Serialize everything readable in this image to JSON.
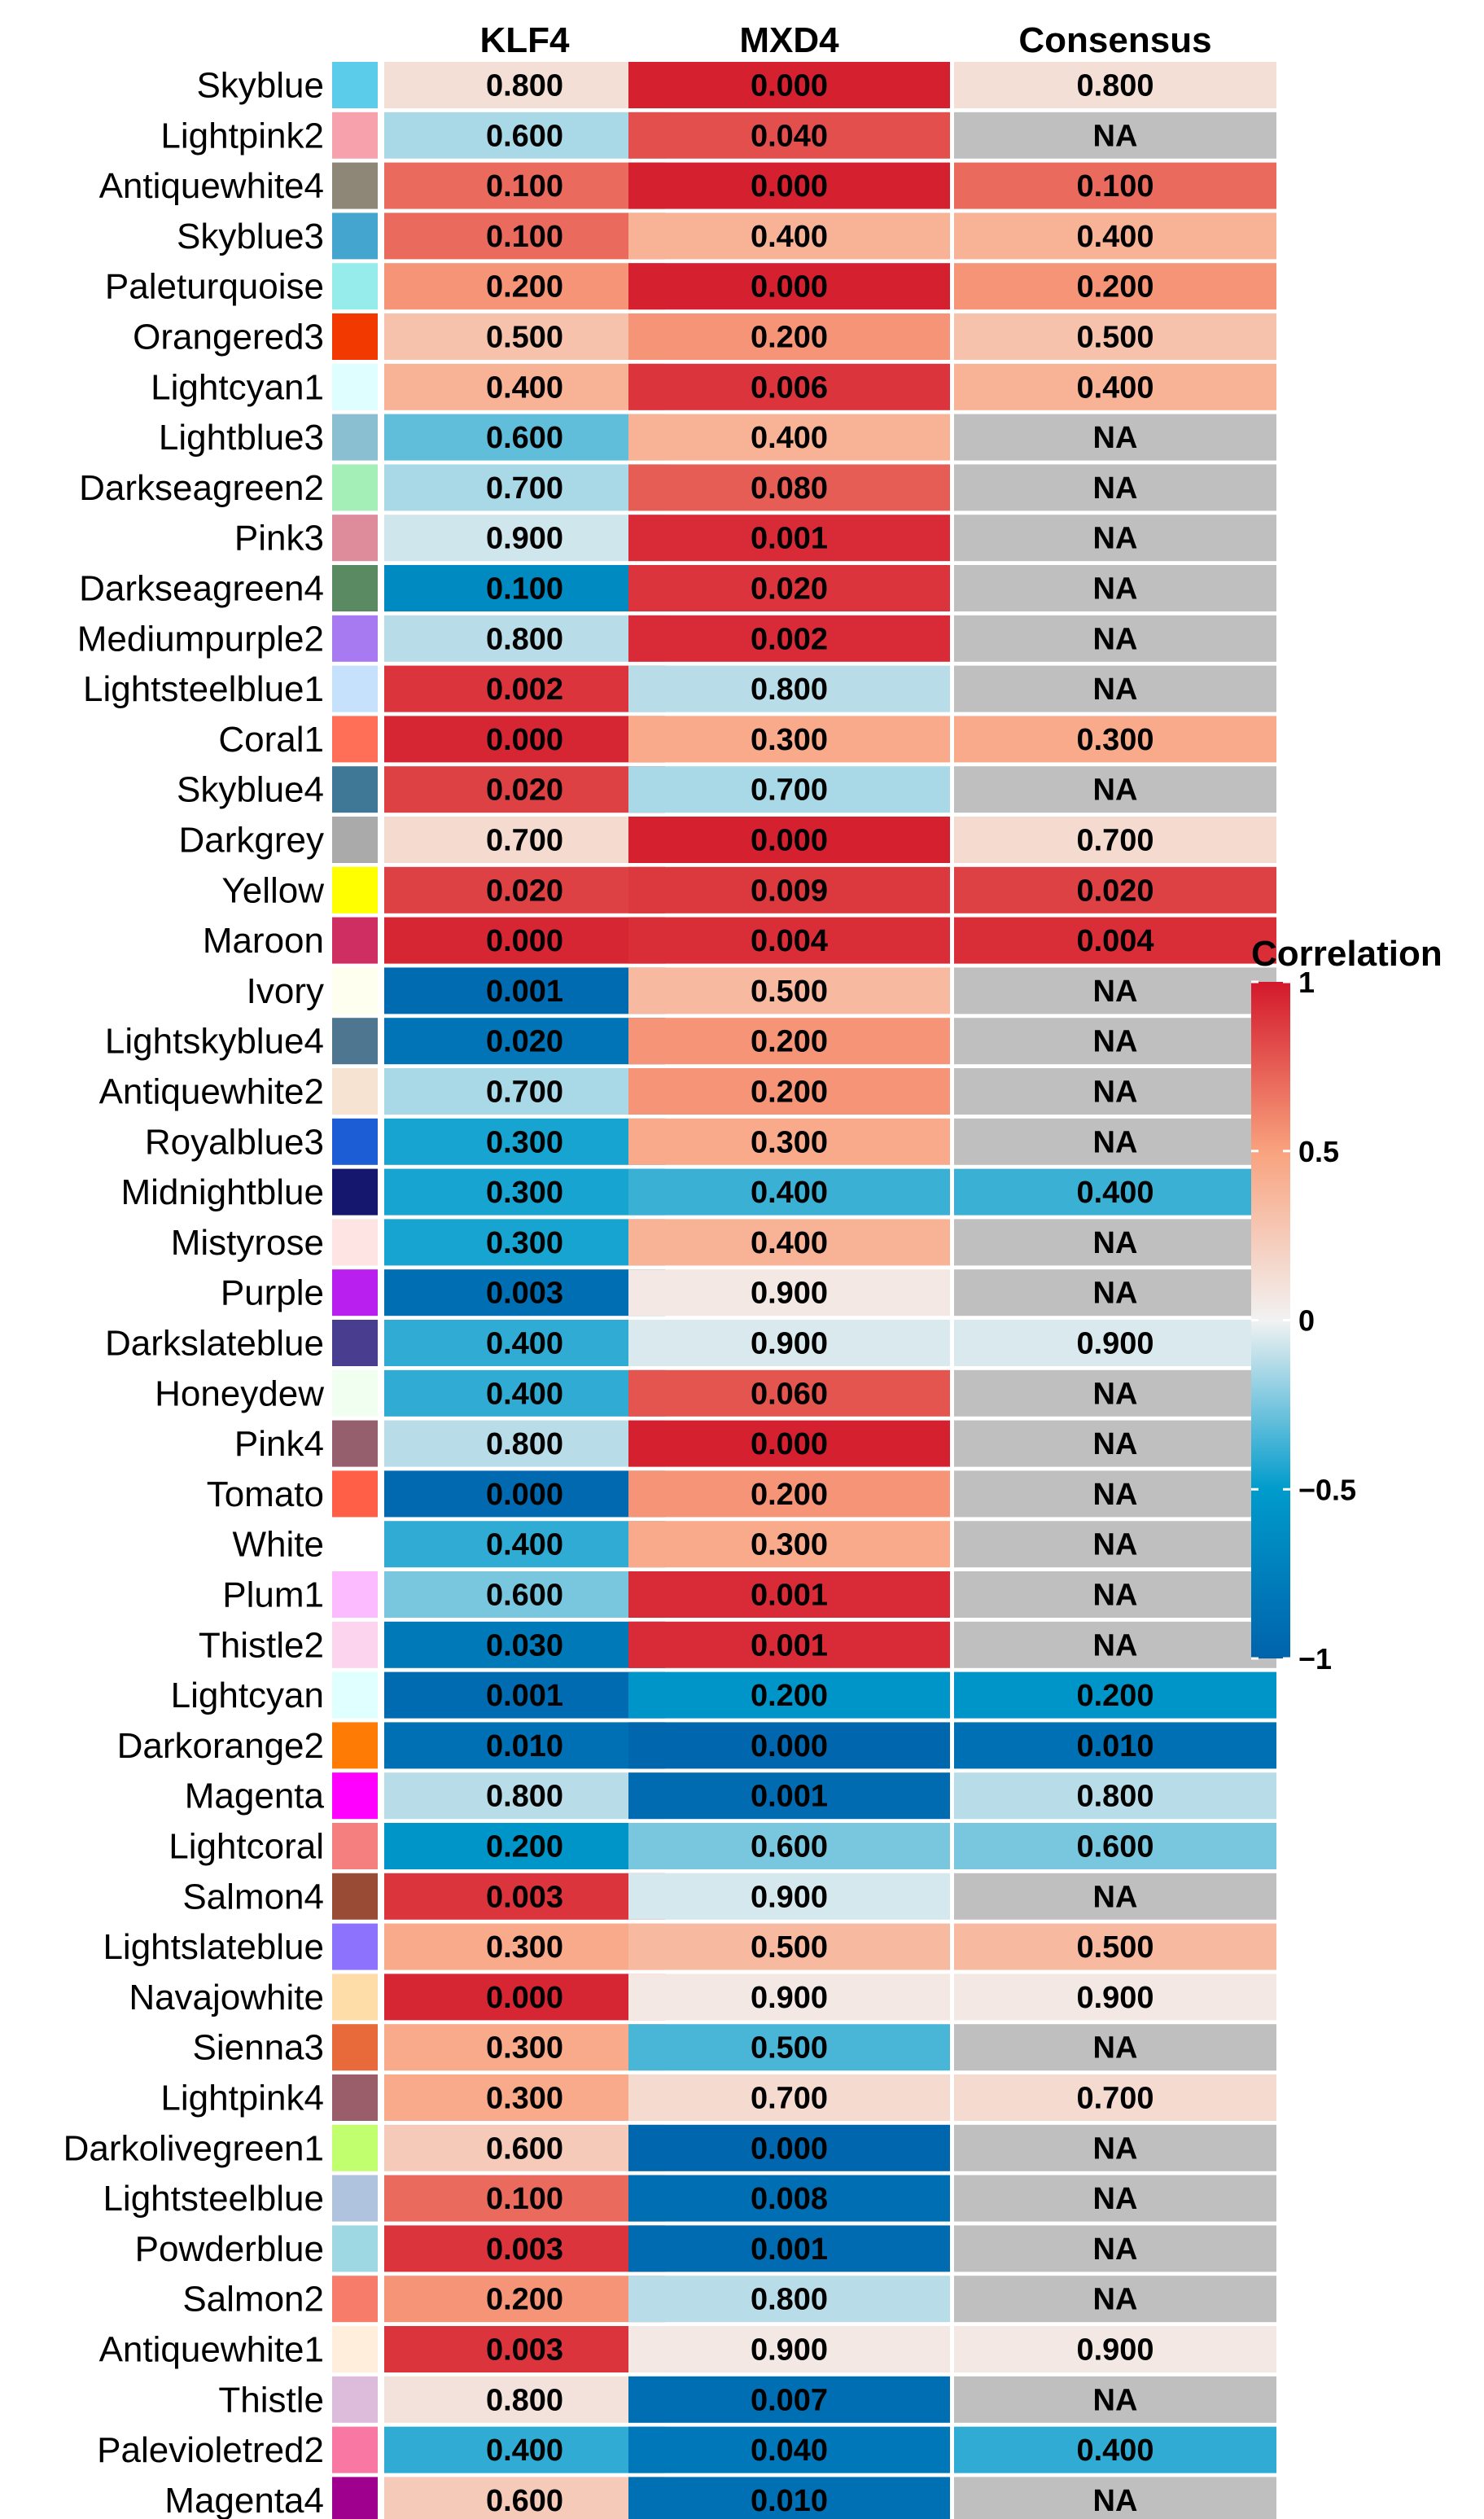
{
  "chart_data": {
    "type": "heatmap",
    "columns": [
      "KLF4",
      "MXD4",
      "Consensus"
    ],
    "rows": [
      {
        "name": "Skyblue",
        "swatch": "#5BCDEB",
        "cells": [
          {
            "label": "0.800",
            "corr": 0.12
          },
          {
            "label": "0.000",
            "corr": 0.97
          },
          {
            "label": "0.800",
            "corr": 0.12
          }
        ]
      },
      {
        "name": "Lightpink2",
        "swatch": "#F7A1AC",
        "cells": [
          {
            "label": "0.600",
            "corr": -0.15
          },
          {
            "label": "0.040",
            "corr": 0.8
          },
          {
            "label": "NA",
            "corr": null
          }
        ]
      },
      {
        "name": "Antiquewhite4",
        "swatch": "#8E8677",
        "cells": [
          {
            "label": "0.100",
            "corr": 0.7
          },
          {
            "label": "0.000",
            "corr": 0.97
          },
          {
            "label": "0.100",
            "corr": 0.7
          }
        ]
      },
      {
        "name": "Skyblue3",
        "swatch": "#44A6CF",
        "cells": [
          {
            "label": "0.100",
            "corr": 0.7
          },
          {
            "label": "0.400",
            "corr": 0.4
          },
          {
            "label": "0.400",
            "corr": 0.4
          }
        ]
      },
      {
        "name": "Paleturquoise",
        "swatch": "#95ECEA",
        "cells": [
          {
            "label": "0.200",
            "corr": 0.55
          },
          {
            "label": "0.000",
            "corr": 0.97
          },
          {
            "label": "0.200",
            "corr": 0.55
          }
        ]
      },
      {
        "name": "Orangered3",
        "swatch": "#F23A00",
        "cells": [
          {
            "label": "0.500",
            "corr": 0.3
          },
          {
            "label": "0.200",
            "corr": 0.55
          },
          {
            "label": "0.500",
            "corr": 0.3
          }
        ]
      },
      {
        "name": "Lightcyan1",
        "swatch": "#DEFEFF",
        "cells": [
          {
            "label": "0.400",
            "corr": 0.4
          },
          {
            "label": "0.006",
            "corr": 0.9
          },
          {
            "label": "0.400",
            "corr": 0.4
          }
        ]
      },
      {
        "name": "Lightblue3",
        "swatch": "#8ABFD1",
        "cells": [
          {
            "label": "0.600",
            "corr": -0.3
          },
          {
            "label": "0.400",
            "corr": 0.4
          },
          {
            "label": "NA",
            "corr": null
          }
        ]
      },
      {
        "name": "Darkseagreen2",
        "swatch": "#A3EFB7",
        "cells": [
          {
            "label": "0.700",
            "corr": -0.15
          },
          {
            "label": "0.080",
            "corr": 0.75
          },
          {
            "label": "NA",
            "corr": null
          }
        ]
      },
      {
        "name": "Pink3",
        "swatch": "#DE8C9C",
        "cells": [
          {
            "label": "0.900",
            "corr": -0.07
          },
          {
            "label": "0.001",
            "corr": 0.93
          },
          {
            "label": "NA",
            "corr": null
          }
        ]
      },
      {
        "name": "Darkseagreen4",
        "swatch": "#5A8A62",
        "cells": [
          {
            "label": "0.100",
            "corr": -0.65
          },
          {
            "label": "0.020",
            "corr": 0.9
          },
          {
            "label": "NA",
            "corr": null
          }
        ]
      },
      {
        "name": "Mediumpurple2",
        "swatch": "#A87AF2",
        "cells": [
          {
            "label": "0.800",
            "corr": -0.12
          },
          {
            "label": "0.002",
            "corr": 0.93
          },
          {
            "label": "NA",
            "corr": null
          }
        ]
      },
      {
        "name": "Lightsteelblue1",
        "swatch": "#C5E1FC",
        "cells": [
          {
            "label": "0.002",
            "corr": 0.9
          },
          {
            "label": "0.800",
            "corr": -0.12
          },
          {
            "label": "NA",
            "corr": null
          }
        ]
      },
      {
        "name": "Coral1",
        "swatch": "#FF6F58",
        "cells": [
          {
            "label": "0.000",
            "corr": 0.95
          },
          {
            "label": "0.300",
            "corr": 0.45
          },
          {
            "label": "0.300",
            "corr": 0.45
          }
        ]
      },
      {
        "name": "Skyblue4",
        "swatch": "#3E7896",
        "cells": [
          {
            "label": "0.020",
            "corr": 0.85
          },
          {
            "label": "0.700",
            "corr": -0.15
          },
          {
            "label": "NA",
            "corr": null
          }
        ]
      },
      {
        "name": "Darkgrey",
        "swatch": "#AAAAAA",
        "cells": [
          {
            "label": "0.700",
            "corr": 0.15
          },
          {
            "label": "0.000",
            "corr": 0.97
          },
          {
            "label": "0.700",
            "corr": 0.15
          }
        ]
      },
      {
        "name": "Yellow",
        "swatch": "#FFFF00",
        "cells": [
          {
            "label": "0.020",
            "corr": 0.85
          },
          {
            "label": "0.009",
            "corr": 0.88
          },
          {
            "label": "0.020",
            "corr": 0.85
          }
        ]
      },
      {
        "name": "Maroon",
        "swatch": "#CE2E61",
        "cells": [
          {
            "label": "0.000",
            "corr": 0.95
          },
          {
            "label": "0.004",
            "corr": 0.92
          },
          {
            "label": "0.004",
            "corr": 0.92
          }
        ]
      },
      {
        "name": "Ivory",
        "swatch": "#FFFFF0",
        "cells": [
          {
            "label": "0.001",
            "corr": -0.93
          },
          {
            "label": "0.500",
            "corr": 0.35
          },
          {
            "label": "NA",
            "corr": null
          }
        ]
      },
      {
        "name": "Lightskyblue4",
        "swatch": "#4F7690",
        "cells": [
          {
            "label": "0.020",
            "corr": -0.85
          },
          {
            "label": "0.200",
            "corr": 0.55
          },
          {
            "label": "NA",
            "corr": null
          }
        ]
      },
      {
        "name": "Antiquewhite2",
        "swatch": "#F7E3D2",
        "cells": [
          {
            "label": "0.700",
            "corr": -0.15
          },
          {
            "label": "0.200",
            "corr": 0.55
          },
          {
            "label": "NA",
            "corr": null
          }
        ]
      },
      {
        "name": "Royalblue3",
        "swatch": "#1C5DD6",
        "cells": [
          {
            "label": "0.300",
            "corr": -0.45
          },
          {
            "label": "0.300",
            "corr": 0.45
          },
          {
            "label": "NA",
            "corr": null
          }
        ]
      },
      {
        "name": "Midnightblue",
        "swatch": "#15176E",
        "cells": [
          {
            "label": "0.300",
            "corr": -0.45
          },
          {
            "label": "0.400",
            "corr": -0.38
          },
          {
            "label": "0.400",
            "corr": -0.38
          }
        ]
      },
      {
        "name": "Mistyrose",
        "swatch": "#FEE4E2",
        "cells": [
          {
            "label": "0.300",
            "corr": -0.45
          },
          {
            "label": "0.400",
            "corr": 0.4
          },
          {
            "label": "NA",
            "corr": null
          }
        ]
      },
      {
        "name": "Purple",
        "swatch": "#B91FEE",
        "cells": [
          {
            "label": "0.003",
            "corr": -0.9
          },
          {
            "label": "0.900",
            "corr": 0.06
          },
          {
            "label": "NA",
            "corr": null
          }
        ]
      },
      {
        "name": "Darkslateblue",
        "swatch": "#483D8E",
        "cells": [
          {
            "label": "0.400",
            "corr": -0.4
          },
          {
            "label": "0.900",
            "corr": -0.05
          },
          {
            "label": "0.900",
            "corr": -0.05
          }
        ]
      },
      {
        "name": "Honeydew",
        "swatch": "#F0FFF0",
        "cells": [
          {
            "label": "0.400",
            "corr": -0.4
          },
          {
            "label": "0.060",
            "corr": 0.78
          },
          {
            "label": "NA",
            "corr": null
          }
        ]
      },
      {
        "name": "Pink4",
        "swatch": "#965F6D",
        "cells": [
          {
            "label": "0.800",
            "corr": -0.12
          },
          {
            "label": "0.000",
            "corr": 0.97
          },
          {
            "label": "NA",
            "corr": null
          }
        ]
      },
      {
        "name": "Tomato",
        "swatch": "#FF5E47",
        "cells": [
          {
            "label": "0.000",
            "corr": -0.95
          },
          {
            "label": "0.200",
            "corr": 0.55
          },
          {
            "label": "NA",
            "corr": null
          }
        ]
      },
      {
        "name": "White",
        "swatch": "#FFFFFF",
        "cells": [
          {
            "label": "0.400",
            "corr": -0.4
          },
          {
            "label": "0.300",
            "corr": 0.45
          },
          {
            "label": "NA",
            "corr": null
          }
        ]
      },
      {
        "name": "Plum1",
        "swatch": "#FCBBFE",
        "cells": [
          {
            "label": "0.600",
            "corr": -0.25
          },
          {
            "label": "0.001",
            "corr": 0.93
          },
          {
            "label": "NA",
            "corr": null
          }
        ]
      },
      {
        "name": "Thistle2",
        "swatch": "#FCD4EE",
        "cells": [
          {
            "label": "0.030",
            "corr": -0.8
          },
          {
            "label": "0.001",
            "corr": 0.93
          },
          {
            "label": "NA",
            "corr": null
          }
        ]
      },
      {
        "name": "Lightcyan",
        "swatch": "#E0FFFF",
        "cells": [
          {
            "label": "0.001",
            "corr": -0.93
          },
          {
            "label": "0.200",
            "corr": -0.55
          },
          {
            "label": "0.200",
            "corr": -0.55
          }
        ]
      },
      {
        "name": "Darkorange2",
        "swatch": "#FE7B06",
        "cells": [
          {
            "label": "0.010",
            "corr": -0.88
          },
          {
            "label": "0.000",
            "corr": -0.97
          },
          {
            "label": "0.010",
            "corr": -0.88
          }
        ]
      },
      {
        "name": "Magenta",
        "swatch": "#FF00FF",
        "cells": [
          {
            "label": "0.800",
            "corr": -0.12
          },
          {
            "label": "0.001",
            "corr": -0.93
          },
          {
            "label": "0.800",
            "corr": -0.12
          }
        ]
      },
      {
        "name": "Lightcoral",
        "swatch": "#F57F7F",
        "cells": [
          {
            "label": "0.200",
            "corr": -0.55
          },
          {
            "label": "0.600",
            "corr": -0.25
          },
          {
            "label": "0.600",
            "corr": -0.25
          }
        ]
      },
      {
        "name": "Salmon4",
        "swatch": "#994B36",
        "cells": [
          {
            "label": "0.003",
            "corr": 0.9
          },
          {
            "label": "0.900",
            "corr": -0.06
          },
          {
            "label": "NA",
            "corr": null
          }
        ]
      },
      {
        "name": "Lightslateblue",
        "swatch": "#8C72FD",
        "cells": [
          {
            "label": "0.300",
            "corr": 0.45
          },
          {
            "label": "0.500",
            "corr": 0.35
          },
          {
            "label": "0.500",
            "corr": 0.35
          }
        ]
      },
      {
        "name": "Navajowhite",
        "swatch": "#FEDDA8",
        "cells": [
          {
            "label": "0.000",
            "corr": 0.95
          },
          {
            "label": "0.900",
            "corr": 0.06
          },
          {
            "label": "0.900",
            "corr": 0.06
          }
        ]
      },
      {
        "name": "Sienna3",
        "swatch": "#E86A3A",
        "cells": [
          {
            "label": "0.300",
            "corr": 0.45
          },
          {
            "label": "0.500",
            "corr": -0.35
          },
          {
            "label": "NA",
            "corr": null
          }
        ]
      },
      {
        "name": "Lightpink4",
        "swatch": "#9A5E6A",
        "cells": [
          {
            "label": "0.300",
            "corr": 0.45
          },
          {
            "label": "0.700",
            "corr": 0.15
          },
          {
            "label": "0.700",
            "corr": 0.15
          }
        ]
      },
      {
        "name": "Darkolivegreen1",
        "swatch": "#C2FF6E",
        "cells": [
          {
            "label": "0.600",
            "corr": 0.25
          },
          {
            "label": "0.000",
            "corr": -0.97
          },
          {
            "label": "NA",
            "corr": null
          }
        ]
      },
      {
        "name": "Lightsteelblue",
        "swatch": "#AFC3DE",
        "cells": [
          {
            "label": "0.100",
            "corr": 0.7
          },
          {
            "label": "0.008",
            "corr": -0.9
          },
          {
            "label": "NA",
            "corr": null
          }
        ]
      },
      {
        "name": "Powderblue",
        "swatch": "#9ED8E2",
        "cells": [
          {
            "label": "0.003",
            "corr": 0.9
          },
          {
            "label": "0.001",
            "corr": -0.93
          },
          {
            "label": "NA",
            "corr": null
          }
        ]
      },
      {
        "name": "Salmon2",
        "swatch": "#F77D6A",
        "cells": [
          {
            "label": "0.200",
            "corr": 0.55
          },
          {
            "label": "0.800",
            "corr": -0.12
          },
          {
            "label": "NA",
            "corr": null
          }
        ]
      },
      {
        "name": "Antiquewhite1",
        "swatch": "#FFEEDB",
        "cells": [
          {
            "label": "0.003",
            "corr": 0.9
          },
          {
            "label": "0.900",
            "corr": 0.06
          },
          {
            "label": "0.900",
            "corr": 0.06
          }
        ]
      },
      {
        "name": "Thistle",
        "swatch": "#DCBCDA",
        "cells": [
          {
            "label": "0.800",
            "corr": 0.1
          },
          {
            "label": "0.007",
            "corr": -0.9
          },
          {
            "label": "NA",
            "corr": null
          }
        ]
      },
      {
        "name": "Palevioletred2",
        "swatch": "#F877A3",
        "cells": [
          {
            "label": "0.400",
            "corr": -0.4
          },
          {
            "label": "0.040",
            "corr": -0.82
          },
          {
            "label": "0.400",
            "corr": -0.4
          }
        ]
      },
      {
        "name": "Magenta4",
        "swatch": "#A0008E",
        "cells": [
          {
            "label": "0.600",
            "corr": 0.25
          },
          {
            "label": "0.010",
            "corr": -0.88
          },
          {
            "label": "NA",
            "corr": null
          }
        ]
      }
    ],
    "legend": {
      "title": "Correlation",
      "range": [
        -1,
        1
      ],
      "ticks": [
        {
          "value": 1,
          "label": "1"
        },
        {
          "value": 0.5,
          "label": "0.5"
        },
        {
          "value": 0,
          "label": "0"
        },
        {
          "value": -0.5,
          "label": "−0.5"
        },
        {
          "value": -1,
          "label": "−1"
        }
      ],
      "colors": [
        "#0063AC",
        "#009BCC",
        "#F2F2F2",
        "#F9A27E",
        "#D3182B"
      ]
    },
    "na_color": "#BFBFBF"
  }
}
